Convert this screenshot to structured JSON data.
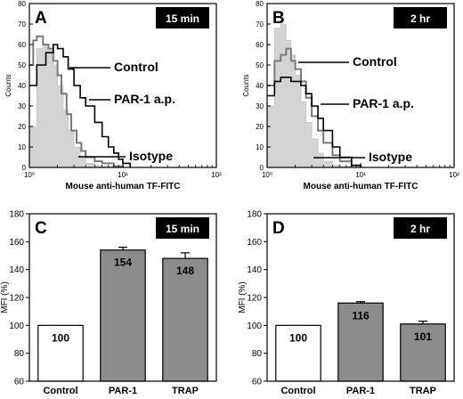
{
  "chart_data": [
    {
      "type": "area",
      "panel": "A",
      "badge": "15 min",
      "xlabel": "Mouse anti-human TF-FITC",
      "ylabel": "Counts",
      "xscale": "log",
      "xlim": [
        1,
        100
      ],
      "ylim": [
        0,
        80
      ],
      "x_ticks": [
        "10⁰",
        "10¹",
        "10²"
      ],
      "y_ticks": [
        "0",
        "10",
        "20",
        "30",
        "40",
        "50",
        "60",
        "70",
        "80"
      ],
      "annotations": [
        "Control",
        "PAR-1 a.p.",
        "Isotype"
      ],
      "series": [
        {
          "name": "Isotype",
          "style": "filled-gray",
          "x": [
            1.0,
            1.2,
            1.4,
            1.6,
            1.8,
            2.0,
            2.3,
            2.6,
            3.0,
            3.5,
            4.0,
            5.0,
            6.0,
            8.0,
            10.0
          ],
          "y": [
            20,
            58,
            60,
            58,
            50,
            40,
            28,
            18,
            10,
            5,
            2,
            1,
            0.5,
            0,
            0
          ]
        },
        {
          "name": "Control",
          "style": "line-gray",
          "x": [
            1.0,
            1.1,
            1.2,
            1.4,
            1.6,
            1.8,
            2.0,
            2.2,
            2.5,
            2.8,
            3.2,
            3.6,
            4.0,
            5.0,
            6.0,
            8.0,
            10.0
          ],
          "y": [
            50,
            62,
            64,
            60,
            58,
            52,
            45,
            36,
            26,
            18,
            12,
            8,
            5,
            3,
            2,
            0.5,
            0
          ]
        },
        {
          "name": "PAR-1 a.p.",
          "style": "line-black",
          "x": [
            1.0,
            1.2,
            1.5,
            1.8,
            2.0,
            2.3,
            2.6,
            3.0,
            3.5,
            4.0,
            5.0,
            6.0,
            7.0,
            8.0,
            9.0,
            10.0,
            12.0
          ],
          "y": [
            40,
            50,
            56,
            60,
            58,
            54,
            48,
            40,
            34,
            30,
            22,
            15,
            10,
            7,
            4,
            2,
            0
          ]
        }
      ]
    },
    {
      "type": "area",
      "panel": "B",
      "badge": "2 hr",
      "xlabel": "Mouse anti-human TF-FITC",
      "ylabel": "Counts",
      "xscale": "log",
      "xlim": [
        1,
        100
      ],
      "ylim": [
        0,
        80
      ],
      "x_ticks": [
        "10⁰",
        "10¹",
        "10²"
      ],
      "y_ticks": [
        "0",
        "10",
        "20",
        "30",
        "40",
        "50",
        "60",
        "70",
        "80"
      ],
      "annotations": [
        "Control",
        "PAR-1 a.p.",
        "Isotype"
      ],
      "series": [
        {
          "name": "Isotype",
          "style": "filled-gray",
          "x": [
            1.0,
            1.2,
            1.4,
            1.6,
            1.8,
            2.0,
            2.3,
            2.6,
            3.0,
            3.5,
            4.0,
            5.0,
            6.0,
            8.0
          ],
          "y": [
            30,
            68,
            70,
            62,
            55,
            45,
            32,
            22,
            14,
            7,
            3,
            1,
            0.5,
            0
          ]
        },
        {
          "name": "Control",
          "style": "line-gray",
          "x": [
            1.0,
            1.2,
            1.4,
            1.6,
            1.8,
            2.0,
            2.3,
            2.6,
            3.0,
            3.5,
            4.0,
            5.0,
            6.0,
            8.0,
            10.0
          ],
          "y": [
            40,
            52,
            55,
            58,
            52,
            48,
            42,
            34,
            25,
            18,
            12,
            6,
            3,
            1,
            0
          ]
        },
        {
          "name": "PAR-1 a.p.",
          "style": "line-black",
          "x": [
            1.0,
            1.2,
            1.4,
            1.6,
            1.8,
            2.0,
            2.3,
            2.6,
            3.0,
            3.5,
            4.0,
            5.0,
            6.0,
            8.0,
            10.0
          ],
          "y": [
            35,
            42,
            44,
            44,
            42,
            42,
            40,
            36,
            30,
            24,
            18,
            10,
            5,
            1,
            0
          ]
        }
      ]
    },
    {
      "type": "bar",
      "panel": "C",
      "badge": "15 min",
      "ylabel": "MFI (%)",
      "ylim": [
        60,
        180
      ],
      "y_ticks": [
        "60",
        "80",
        "100",
        "120",
        "140",
        "160",
        "180"
      ],
      "categories": [
        "Control",
        "PAR-1",
        "TRAP"
      ],
      "values": [
        100,
        154,
        148
      ],
      "errors": [
        0,
        2,
        4
      ],
      "value_labels": [
        "100",
        "154",
        "148"
      ],
      "colors": [
        "#ffffff",
        "#8c8c8c",
        "#8c8c8c"
      ]
    },
    {
      "type": "bar",
      "panel": "D",
      "badge": "2 hr",
      "ylabel": "MFI (%)",
      "ylim": [
        60,
        180
      ],
      "y_ticks": [
        "60",
        "80",
        "100",
        "120",
        "140",
        "160",
        "180"
      ],
      "categories": [
        "Control",
        "PAR-1",
        "TRAP"
      ],
      "values": [
        100,
        116,
        101
      ],
      "errors": [
        0,
        1,
        2
      ],
      "value_labels": [
        "100",
        "116",
        "101"
      ],
      "colors": [
        "#ffffff",
        "#8c8c8c",
        "#8c8c8c"
      ]
    }
  ]
}
